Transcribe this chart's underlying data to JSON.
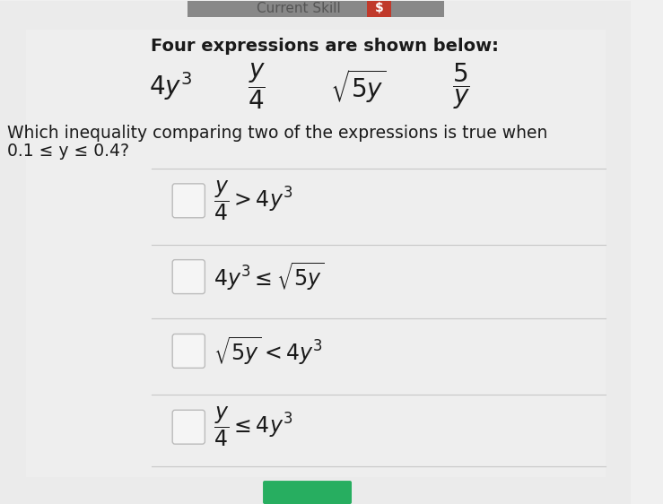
{
  "bg_color": "#f0f0f0",
  "bg_top_color": "#d8d8d8",
  "header_bg": "#c0392b",
  "title_line1": "Four expressions are shown below:",
  "question_line1": "Which inequality comparing two of the expressions is true when",
  "question_line2": "0.1 ≤ y ≤ 0.4?",
  "checkbox_color": "#f5f5f5",
  "checkbox_border": "#bbbbbb",
  "divider_color": "#c8c8c8",
  "text_color": "#1a1a1a",
  "font_size_title": 14,
  "font_size_question": 13.5,
  "font_size_expr": 20,
  "font_size_option": 17
}
